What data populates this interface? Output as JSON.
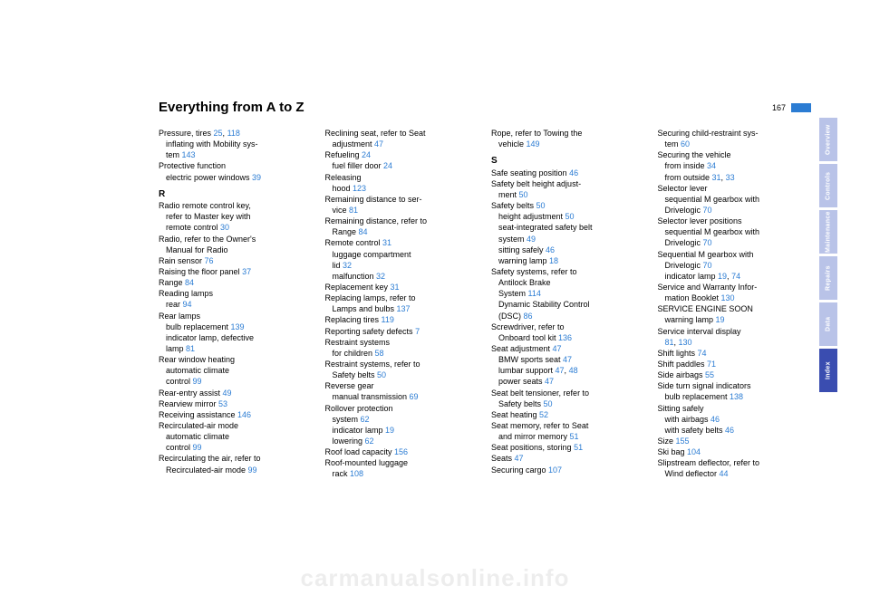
{
  "page": {
    "title": "Everything from A to Z",
    "number": "167"
  },
  "watermark": "carmanualsonline.info",
  "tabs": [
    {
      "label": "Overview",
      "active": false
    },
    {
      "label": "Controls",
      "active": false
    },
    {
      "label": "Maintenance",
      "active": false
    },
    {
      "label": "Repairs",
      "active": false
    },
    {
      "label": "Data",
      "active": false
    },
    {
      "label": "Index",
      "active": true
    }
  ],
  "columns": [
    [
      {
        "t": "Pressure, tires ",
        "r": "25",
        "r2": "118"
      },
      {
        "t": "inflating with Mobility sys-",
        "sub": true
      },
      {
        "t": "tem ",
        "r": "143",
        "sub": true,
        "cont": true
      },
      {
        "t": "Protective function"
      },
      {
        "t": "electric power windows ",
        "r": "39",
        "sub": true
      },
      {
        "letter": "R"
      },
      {
        "t": "Radio remote control key,"
      },
      {
        "t": "refer to Master key with",
        "sub": true
      },
      {
        "t": "remote control ",
        "r": "30",
        "sub": true,
        "cont": true
      },
      {
        "t": "Radio, refer to the Owner's"
      },
      {
        "t": "Manual for Radio",
        "sub": true
      },
      {
        "t": "Rain sensor ",
        "r": "76"
      },
      {
        "t": "Raising the floor panel ",
        "r": "37"
      },
      {
        "t": "Range ",
        "r": "84"
      },
      {
        "t": "Reading lamps"
      },
      {
        "t": "rear ",
        "r": "94",
        "sub": true
      },
      {
        "t": "Rear lamps"
      },
      {
        "t": "bulb replacement ",
        "r": "139",
        "sub": true
      },
      {
        "t": "indicator lamp, defective",
        "sub": true
      },
      {
        "t": "lamp ",
        "r": "81",
        "sub": true,
        "cont": true
      },
      {
        "t": "Rear window heating"
      },
      {
        "t": "automatic climate",
        "sub": true
      },
      {
        "t": "control ",
        "r": "99",
        "sub": true,
        "cont": true
      },
      {
        "t": "Rear-entry assist ",
        "r": "49"
      },
      {
        "t": "Rearview mirror ",
        "r": "53"
      },
      {
        "t": "Receiving assistance ",
        "r": "146"
      },
      {
        "t": "Recirculated-air mode"
      },
      {
        "t": "automatic climate",
        "sub": true
      },
      {
        "t": "control ",
        "r": "99",
        "sub": true,
        "cont": true
      },
      {
        "t": "Recirculating the air, refer to"
      },
      {
        "t": "Recirculated-air mode ",
        "r": "99",
        "sub": true
      }
    ],
    [
      {
        "t": "Reclining seat, refer to Seat"
      },
      {
        "t": "adjustment ",
        "r": "47",
        "sub": true
      },
      {
        "t": "Refueling ",
        "r": "24"
      },
      {
        "t": "fuel filler door ",
        "r": "24",
        "sub": true
      },
      {
        "t": "Releasing"
      },
      {
        "t": "hood ",
        "r": "123",
        "sub": true
      },
      {
        "t": "Remaining distance to ser-"
      },
      {
        "t": "vice ",
        "r": "81",
        "sub": true
      },
      {
        "t": "Remaining distance, refer to"
      },
      {
        "t": "Range ",
        "r": "84",
        "sub": true
      },
      {
        "t": "Remote control ",
        "r": "31"
      },
      {
        "t": "luggage compartment",
        "sub": true
      },
      {
        "t": "lid ",
        "r": "32",
        "sub": true,
        "cont": true
      },
      {
        "t": "malfunction ",
        "r": "32",
        "sub": true
      },
      {
        "t": "Replacement key ",
        "r": "31"
      },
      {
        "t": "Replacing lamps, refer to"
      },
      {
        "t": "Lamps and bulbs ",
        "r": "137",
        "sub": true
      },
      {
        "t": "Replacing tires ",
        "r": "119"
      },
      {
        "t": "Reporting safety defects ",
        "r": "7"
      },
      {
        "t": "Restraint systems"
      },
      {
        "t": "for children ",
        "r": "58",
        "sub": true
      },
      {
        "t": "Restraint systems, refer to"
      },
      {
        "t": "Safety belts ",
        "r": "50",
        "sub": true
      },
      {
        "t": "Reverse gear"
      },
      {
        "t": "manual transmission ",
        "r": "69",
        "sub": true
      },
      {
        "t": "Rollover protection"
      },
      {
        "t": "system ",
        "r": "62",
        "sub": true
      },
      {
        "t": "indicator lamp ",
        "r": "19",
        "sub": true
      },
      {
        "t": "lowering ",
        "r": "62",
        "sub": true
      },
      {
        "t": "Roof load capacity ",
        "r": "156"
      },
      {
        "t": "Roof-mounted luggage"
      },
      {
        "t": "rack ",
        "r": "108",
        "sub": true
      }
    ],
    [
      {
        "t": "Rope, refer to Towing the"
      },
      {
        "t": "vehicle ",
        "r": "149",
        "sub": true
      },
      {
        "letter": "S"
      },
      {
        "t": "Safe seating position ",
        "r": "46"
      },
      {
        "t": "Safety belt height adjust-"
      },
      {
        "t": "ment ",
        "r": "50",
        "sub": true
      },
      {
        "t": "Safety belts ",
        "r": "50"
      },
      {
        "t": "height adjustment ",
        "r": "50",
        "sub": true
      },
      {
        "t": "seat-integrated safety belt",
        "sub": true
      },
      {
        "t": "system ",
        "r": "49",
        "sub": true,
        "cont": true
      },
      {
        "t": "sitting safely ",
        "r": "46",
        "sub": true
      },
      {
        "t": "warning lamp ",
        "r": "18",
        "sub": true
      },
      {
        "t": "Safety systems, refer to"
      },
      {
        "t": "Antilock Brake",
        "sub": true
      },
      {
        "t": "System ",
        "r": "114",
        "sub": true,
        "cont": true
      },
      {
        "t": "Dynamic Stability Control",
        "sub": true
      },
      {
        "t": "(DSC) ",
        "r": "86",
        "sub": true,
        "cont": true
      },
      {
        "t": "Screwdriver, refer to"
      },
      {
        "t": "Onboard tool kit ",
        "r": "136",
        "sub": true
      },
      {
        "t": "Seat adjustment ",
        "r": "47"
      },
      {
        "t": "BMW sports seat ",
        "r": "47",
        "sub": true
      },
      {
        "t": "lumbar support ",
        "r": "47",
        "r2": "48",
        "sub": true
      },
      {
        "t": "power seats ",
        "r": "47",
        "sub": true
      },
      {
        "t": "Seat belt tensioner, refer to"
      },
      {
        "t": "Safety belts ",
        "r": "50",
        "sub": true
      },
      {
        "t": "Seat heating ",
        "r": "52"
      },
      {
        "t": "Seat memory, refer to Seat"
      },
      {
        "t": "and mirror memory ",
        "r": "51",
        "sub": true
      },
      {
        "t": "Seat positions, storing ",
        "r": "51"
      },
      {
        "t": "Seats ",
        "r": "47"
      },
      {
        "t": "Securing cargo ",
        "r": "107"
      }
    ],
    [
      {
        "t": "Securing child-restraint sys-"
      },
      {
        "t": "tem ",
        "r": "60",
        "sub": true
      },
      {
        "t": "Securing the vehicle"
      },
      {
        "t": "from inside ",
        "r": "34",
        "sub": true
      },
      {
        "t": "from outside ",
        "r": "31",
        "r2": "33",
        "sub": true
      },
      {
        "t": "Selector lever"
      },
      {
        "t": "sequential M gearbox with",
        "sub": true
      },
      {
        "t": "Drivelogic ",
        "r": "70",
        "sub": true,
        "cont": true
      },
      {
        "t": "Selector lever positions"
      },
      {
        "t": "sequential M gearbox with",
        "sub": true
      },
      {
        "t": "Drivelogic ",
        "r": "70",
        "sub": true,
        "cont": true
      },
      {
        "t": "Sequential M gearbox with"
      },
      {
        "t": "Drivelogic ",
        "r": "70",
        "sub": true
      },
      {
        "t": "indicator lamp ",
        "r": "19",
        "r2": "74",
        "sub": true
      },
      {
        "t": "Service and Warranty Infor-"
      },
      {
        "t": "mation Booklet ",
        "r": "130",
        "sub": true
      },
      {
        "t": "SERVICE ENGINE SOON"
      },
      {
        "t": "warning lamp ",
        "r": "19",
        "sub": true
      },
      {
        "t": "Service interval display"
      },
      {
        "t": "",
        "r": "81",
        "r2": "130",
        "sub": true
      },
      {
        "t": "Shift lights ",
        "r": "74"
      },
      {
        "t": "Shift paddles ",
        "r": "71"
      },
      {
        "t": "Side airbags ",
        "r": "55"
      },
      {
        "t": "Side turn signal indicators"
      },
      {
        "t": "bulb replacement ",
        "r": "138",
        "sub": true
      },
      {
        "t": "Sitting safely"
      },
      {
        "t": "with airbags ",
        "r": "46",
        "sub": true
      },
      {
        "t": "with safety belts ",
        "r": "46",
        "sub": true
      },
      {
        "t": "Size ",
        "r": "155"
      },
      {
        "t": "Ski bag ",
        "r": "104"
      },
      {
        "t": "Slipstream deflector, refer to"
      },
      {
        "t": "Wind deflector ",
        "r": "44",
        "sub": true
      }
    ]
  ]
}
